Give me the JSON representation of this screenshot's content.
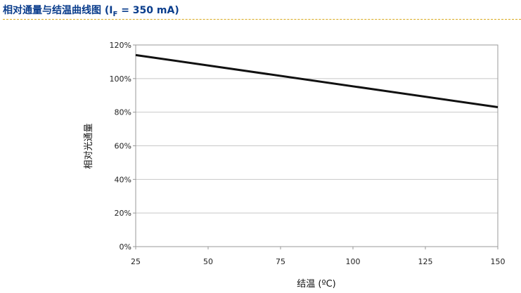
{
  "header": {
    "title_prefix": "相对通量与结温曲线图 (I",
    "title_subscript": "F",
    "title_suffix": " = 350 mA)",
    "title_color": "#0a3d8c",
    "rule_color": "#d9a91c"
  },
  "chart_data": {
    "type": "line",
    "title": "相对通量与结温曲线图 (IF = 350 mA)",
    "xlabel": "结温 (ºC)",
    "ylabel": "相对光通量",
    "xlim": [
      25,
      150
    ],
    "ylim": [
      0,
      120
    ],
    "x_ticks": [
      25,
      50,
      75,
      100,
      125,
      150
    ],
    "y_ticks": [
      "0%",
      "20%",
      "40%",
      "60%",
      "80%",
      "100%",
      "120%"
    ],
    "y_tick_values": [
      0,
      20,
      40,
      60,
      80,
      100,
      120
    ],
    "grid": "horizontal",
    "legend": "none",
    "series": [
      {
        "x": [
          25,
          150
        ],
        "y": [
          114,
          83
        ],
        "color": "#111111"
      }
    ]
  }
}
